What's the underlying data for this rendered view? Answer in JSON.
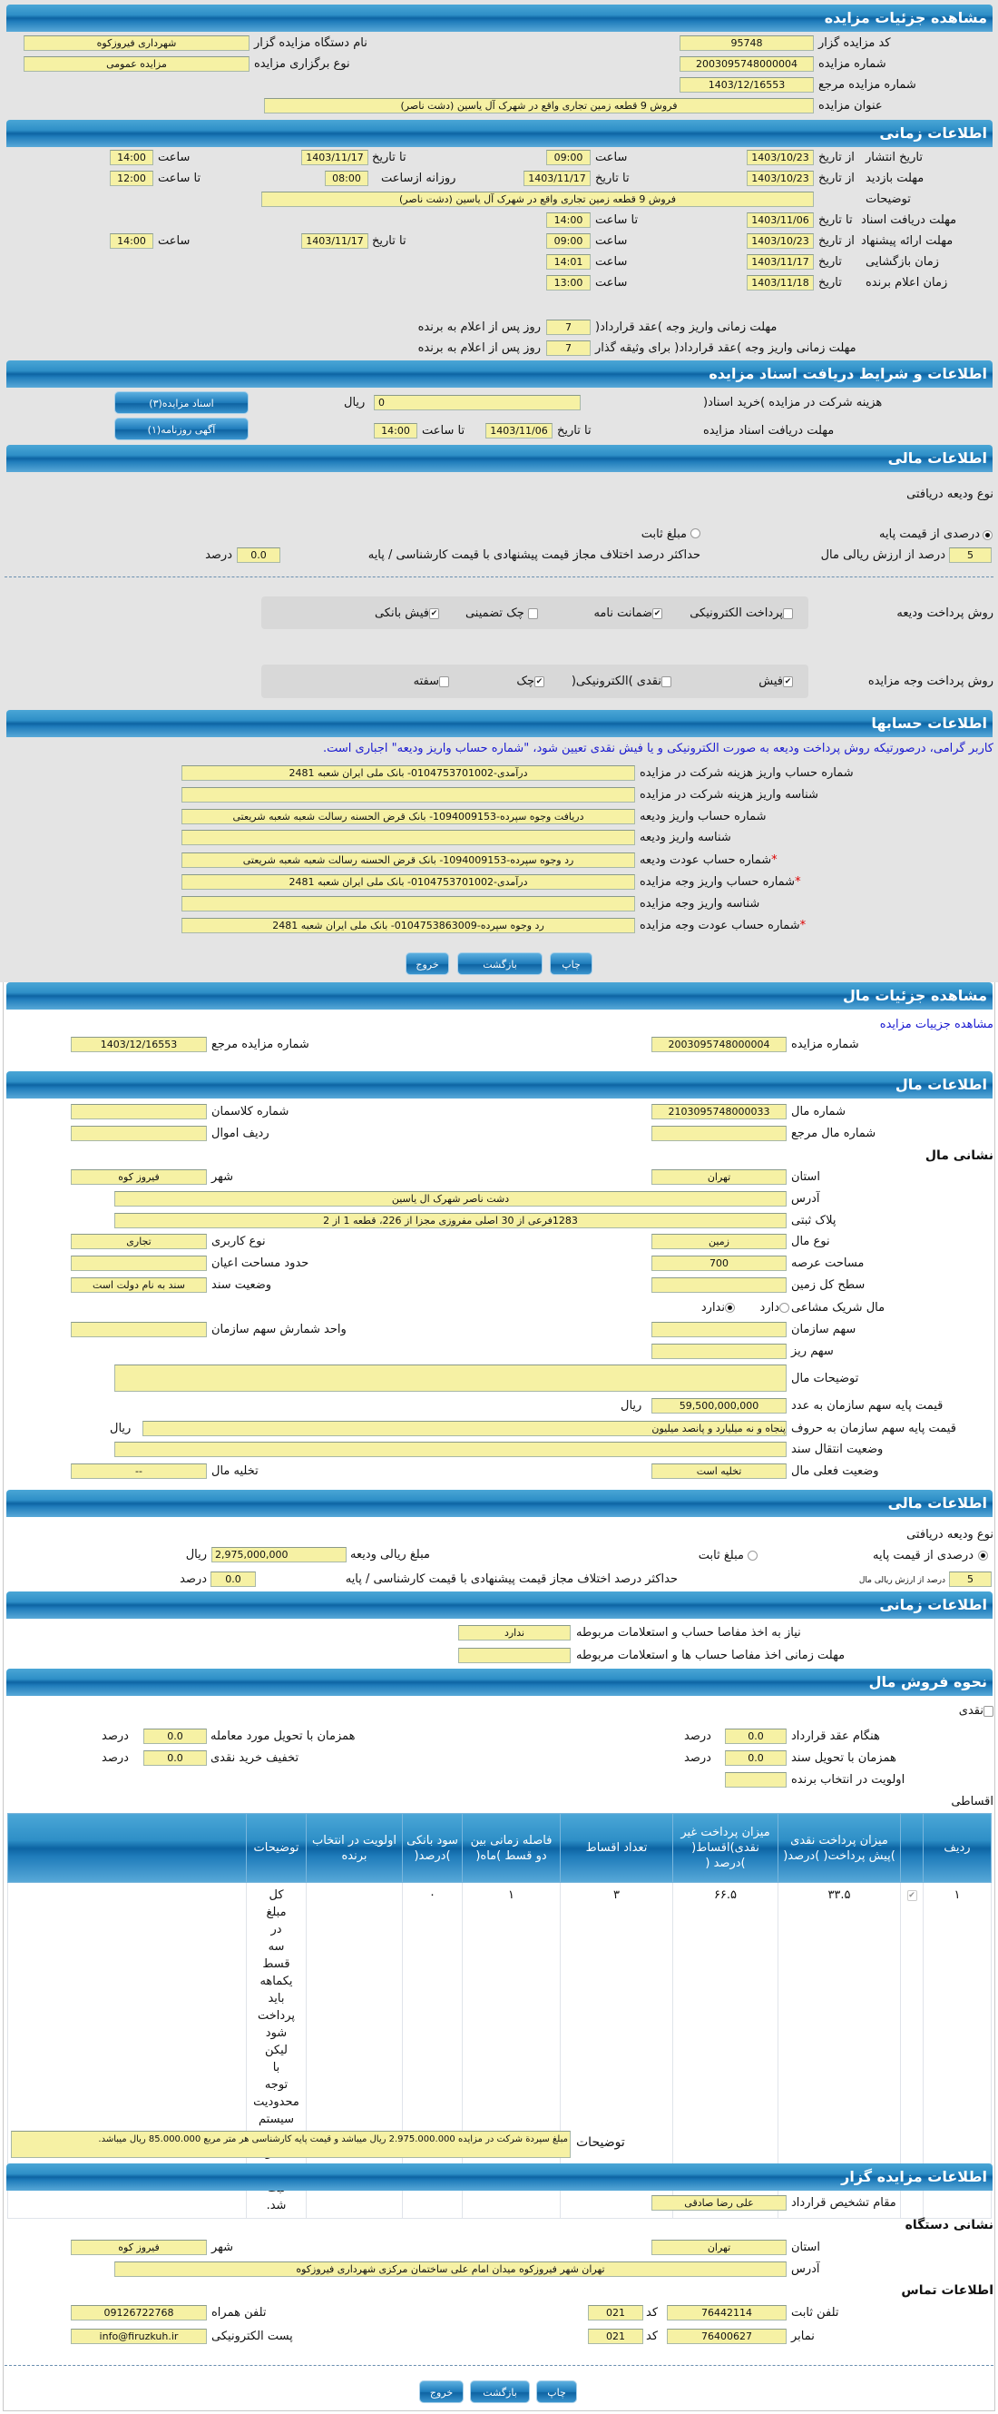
{
  "auction": {
    "title": "مشاهده جزئیات مزایده",
    "code_label": "کد مزایده گزار",
    "code": "95748",
    "org_label": "نام دستگاه مزایده گزار",
    "org": "شهرداری فیروزکوه",
    "number_label": "شماره مزایده",
    "number": "2003095748000004",
    "type_label": "نوع برگزاری مزایده",
    "type": "مزایده عمومی",
    "ref_label": "شماره مزایده مرجع",
    "ref": "1403/12/16553",
    "subject_label": "عنوان مزایده",
    "subject": "فروش 9 قطعه زمین تجاری واقع در شهرک آل یاسین (دشت ناصر)"
  },
  "timing": {
    "title": "اطلاعات زمانی",
    "from_date": "از تاریخ",
    "to_date": "تا تاریخ",
    "date": "تاریخ",
    "time": "ساعت",
    "to_time": "تا ساعت",
    "daily_from": "روزانه ازساعت",
    "publish": {
      "label": "تاریخ انتشار",
      "from": "1403/10/23",
      "from_time": "09:00",
      "to": "1403/11/17",
      "to_time": "14:00"
    },
    "visit": {
      "label": "مهلت بازدید",
      "from": "1403/10/23",
      "to": "1403/11/17",
      "daily_from": "08:00",
      "daily_to": "12:00"
    },
    "desc_label": "توضیحات",
    "desc": "فروش 9 قطعه زمین تجاری واقع در شهرک آل یاسین (دشت ناصر)",
    "docs": {
      "label": "مهلت دریافت اسناد",
      "to": "1403/11/06",
      "to_time": "14:00"
    },
    "offer": {
      "label": "مهلت ارائه پیشنهاد",
      "from": "1403/10/23",
      "from_time": "09:00",
      "to": "1403/11/17",
      "to_time": "14:00"
    },
    "opening": {
      "label": "زمان بازگشایی",
      "date": "1403/11/17",
      "time": "14:01"
    },
    "winner": {
      "label": "زمان اعلام برنده",
      "date": "1403/11/18",
      "time": "13:00"
    },
    "pay_deadline": {
      "label": "مهلت زمانی واریز وجه )عقد قرارداد(",
      "days": "7",
      "suffix": "روز پس از اعلام به برنده"
    },
    "pledge_deadline": {
      "label": "مهلت زمانی واریز وجه )عقد قرارداد( برای وثیقه گذار",
      "days": "7",
      "suffix": "روز پس از اعلام به برنده"
    }
  },
  "docs": {
    "title": "اطلاعات و شرایط دریافت اسناد مزایده",
    "fee_label": "هزینه شرکت در مزایده )خرید اسناد(",
    "fee": "0",
    "currency": "ریال",
    "deadline_label": "مهلت دریافت اسناد مزایده",
    "to_date_label": "تا تاریخ",
    "date": "1403/11/06",
    "to_time_label": "تا ساعت",
    "time": "14:00",
    "btn_docs": "اسناد مزایده(۳)",
    "btn_ad": "آگهی روزنامه(۱)"
  },
  "finance": {
    "title": "اطلاعات مالی",
    "deposit_type_label": "نوع ودیعه دریافتی",
    "opt_percent": "درصدی از قیمت پایه",
    "opt_fixed": "مبلغ ثابت",
    "deposit_type": "percent",
    "percent": "5",
    "percent_label": "درصد از ارزش ریالی مال",
    "max_diff_label": "حداکثر درصد اختلاف مجاز قیمت پیشنهادی با قیمت کارشناسی / پایه",
    "max_diff": "0.0",
    "percent_unit": "درصد",
    "deposit_method_label": "روش پرداخت ودیعه",
    "deposit_methods": [
      {
        "label": "پرداخت الکترونیکی",
        "checked": false
      },
      {
        "label": "ضمانت نامه",
        "checked": true
      },
      {
        "label": "چک تضمینی",
        "checked": false
      },
      {
        "label": "فیش بانکی",
        "checked": true
      }
    ],
    "payment_method_label": "روش پرداخت وجه مزایده",
    "payment_methods": [
      {
        "label": "فیش",
        "checked": true
      },
      {
        "label": "نقدی )الکترونیکی(",
        "checked": false
      },
      {
        "label": "چک",
        "checked": true
      },
      {
        "label": "سفته",
        "checked": false
      }
    ]
  },
  "accounts": {
    "title": "اطلاعات حسابها",
    "notice": "کاربر گرامی، درصورتیکه روش پرداخت ودیعه به صورت الکترونیکی و یا فیش نقدی تعیین شود، \"شماره حساب واریز ودیعه\" اجباری است.",
    "rows": [
      {
        "label": "شماره حساب واریز هزینه شرکت در مزایده",
        "value": "درآمدی-0104753701002- بانک ملی ایران شعبه 2481",
        "required": false
      },
      {
        "label": "شناسه واریز هزینه شرکت در مزایده",
        "value": "",
        "required": false
      },
      {
        "label": "شماره حساب واریز ودیعه",
        "value": "دریافت وجوه سپرده-1094009153- بانک قرض الحسنه رسالت شعبه شعبه شریعتی",
        "required": false
      },
      {
        "label": "شناسه واریز ودیعه",
        "value": "",
        "required": false
      },
      {
        "label": "شماره حساب عودت ودیعه",
        "value": "رد وجوه سپرده-1094009153- بانک قرض الحسنه رسالت شعبه شعبه شریعتی",
        "required": true
      },
      {
        "label": "شماره حساب واریز وجه مزایده",
        "value": "درآمدی-0104753701002- بانک ملی ایران شعبه 2481",
        "required": true
      },
      {
        "label": "شناسه واریز وجه مزایده",
        "value": "",
        "required": false
      },
      {
        "label": "شماره حساب عودت وجه مزایده",
        "value": "رد وجوه سپرده-0104753863009- بانک ملی ایران شعبه 2481",
        "required": true
      }
    ],
    "required_mark": "*"
  },
  "buttons": {
    "print": "چاپ",
    "back": "بازگشت",
    "exit": "خروج"
  },
  "item": {
    "title": "مشاهده جزئیات مال",
    "link": "مشاهده جزییات مزایده",
    "auction_number_label": "شماره مزایده",
    "auction_number": "2003095748000004",
    "ref_label": "شماره مزایده مرجع",
    "ref": "1403/12/16553"
  },
  "item_info": {
    "title": "اطلاعات مال",
    "number_label": "شماره مال",
    "number": "2103095748000033",
    "class_label": "شماره کلاسمان",
    "class": "",
    "ref_label": "شماره مال مرجع",
    "ref": "",
    "row_label": "ردیف اموال",
    "row": "",
    "address_heading": "نشانی مال",
    "province_label": "استان",
    "province": "تهران",
    "city_label": "شهر",
    "city": "فیروز کوه",
    "address_label": "آدرس",
    "address": "دشت ناصر شهرک ال یاسین",
    "plate_label": "پلاک ثبتی",
    "plate": "1283فرعی از 30 اصلی مفروزی مجزا از 226، قطعه 1 از 2",
    "kind_label": "نوع مال",
    "kind": "زمین",
    "usage_label": "نوع کاربری",
    "usage": "تجاری",
    "area_label": "مساحت عرصه",
    "area": "700",
    "building_label": "حدود مساحت اعیان",
    "building": "",
    "land_label": "سطح کل زمین",
    "land": "",
    "deed_label": "وضعیت سند",
    "deed": "سند به نام دولت است",
    "shared_label": "مال شریک مشاعی",
    "shared_yes": "دارد",
    "shared_no": "ندارد",
    "shared": "no",
    "share_label": "سهم سازمان",
    "share": "",
    "share_unit_label": "واحد شمارش سهم سازمان",
    "share_unit": "",
    "sub_share_label": "سهم ریز",
    "sub_share": "",
    "desc_label": "توضیحات مال",
    "desc": "",
    "price_num_label": "قیمت پایه سهم سازمان به عدد",
    "price_num": "59,500,000,000",
    "currency": "ریال",
    "price_words_label": "قیمت پایه سهم سازمان به حروف",
    "price_words": "پنجاه و نه میلیارد و پانصد میلیون",
    "transfer_label": "وضعیت انتقال سند",
    "transfer": "",
    "status_label": "وضعیت فعلی مال",
    "status": "تخلیه است",
    "evac_label": "تخلیه مال",
    "evac": "--"
  },
  "item_finance": {
    "title": "اطلاعات مالی",
    "deposit_type_label": "نوع ودیعه دریافتی",
    "opt_percent": "درصدی از قیمت پایه",
    "opt_fixed": "مبلغ ثابت",
    "deposit_type": "percent",
    "amount_label": "مبلغ ریالی ودیعه",
    "amount": "2,975,000,000",
    "currency": "ریال",
    "percent": "5",
    "percent_label": "درصد از ارزش ریالی مال",
    "max_diff_label": "حداکثر درصد اختلاف مجاز قیمت پیشنهادی با قیمت کارشناسی / پایه",
    "max_diff": "0.0",
    "percent_unit": "درصد"
  },
  "item_time": {
    "title": "اطلاعات زمانی",
    "clearance_label": "نیاز به اخذ مفاصا حساب و استعلامات مربوطه",
    "clearance": "ندارد",
    "clearance_deadline_label": "مهلت زمانی اخذ مفاصا حساب ها و استعلامات مربوطه",
    "clearance_deadline": ""
  },
  "sale": {
    "title": "نحوه فروش مال",
    "cash_label": "نقدی",
    "cash_checked": false,
    "contract_label": "هنگام عقد قرارداد",
    "contract": "0.0",
    "delivery_label": "همزمان با تحویل مورد معامله",
    "delivery": "0.0",
    "deed_label": "همزمان با تحویل سند",
    "deed": "0.0",
    "discount_label": "تخفیف خرید نقدی",
    "discount": "0.0",
    "priority_label": "اولویت در انتخاب برنده",
    "priority": "",
    "unit": "درصد",
    "installment_label": "اقساطی",
    "table": {
      "headers": [
        "ردیف",
        "",
        "میزان پرداخت نقدی )پیش پرداخت( )درصد(",
        "میزان پرداخت غیر نقدی)اقساط( )درصد (",
        "تعداد اقساط",
        "فاصله زمانی بین دو قسط )ماه(",
        "سود بانکی )درصد(",
        "اولویت در انتخاب برنده",
        "توضیحات",
        ""
      ],
      "rows": [
        {
          "index": "۱",
          "selected": true,
          "cash": "۳۳.۵",
          "noncash": "۶۶.۵",
          "count": "۳",
          "interval": "۱",
          "interest": "۰",
          "priority": "",
          "desc": "کل مبلغ در سه قسط یکماهه باید پرداخت شود لیکن با توجه محدودیت سیستم به شکل بالا ثبت شد."
        }
      ]
    },
    "notes_label": "توضیحات",
    "notes": "مبلغ سپردة شرکت در مزایده 2.975.000.000 ریال میباشد و قیمت پایه کارشناسی هر متر مربع 85.000.000 ریال میباشد."
  },
  "owner": {
    "title": "اطلاعات مزایده گزار",
    "authority_label": "مقام تشخیص قرارداد",
    "authority": "علی رضا صادقی",
    "org_address_heading": "نشانی دستگاه",
    "province_label": "استان",
    "province": "تهران",
    "city_label": "شهر",
    "city": "فیروز کوه",
    "address_label": "آدرس",
    "address": "تهران شهر فیروزکوه میدان امام علی ساختمان مرکزی شهرداری فیروزکوه",
    "contact_heading": "اطلاعات تماس",
    "phone_label": "تلفن ثابت",
    "phone": "76442114",
    "code_label": "کد",
    "phone_code": "021",
    "mobile_label": "تلفن همراه",
    "mobile": "09126722768",
    "fax_label": "نمابر",
    "fax": "76400627",
    "fax_code": "021",
    "email_label": "پست الکترونیکی",
    "email": "info@firuzkuh.ir"
  }
}
